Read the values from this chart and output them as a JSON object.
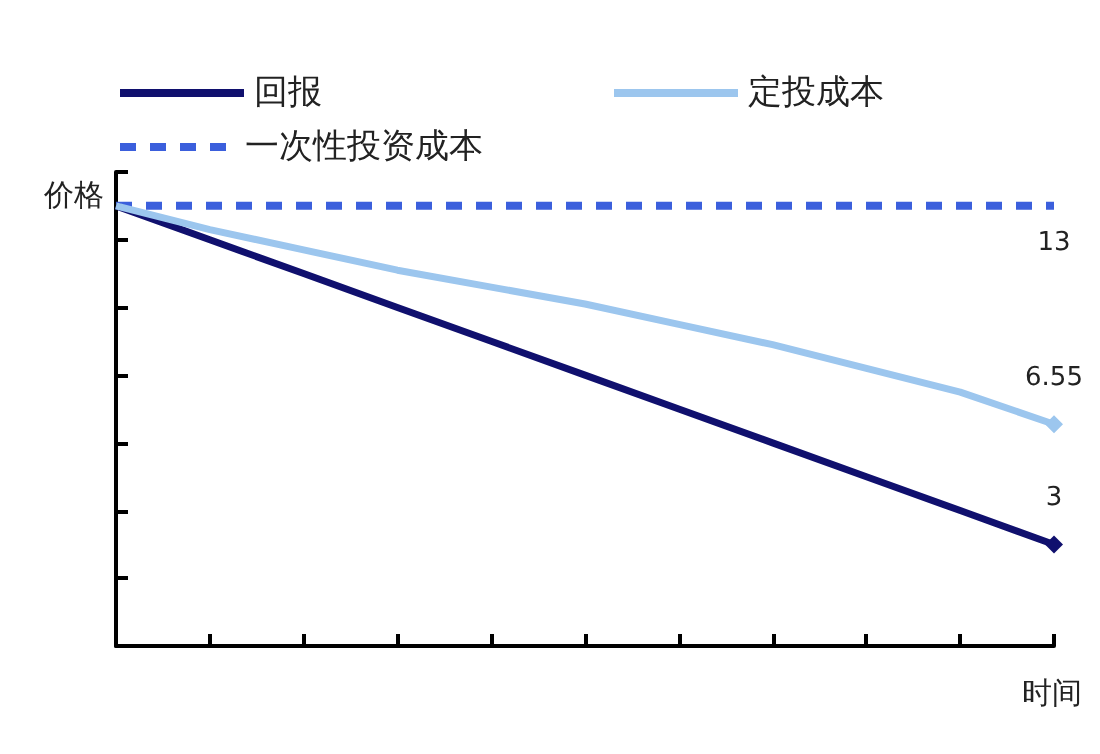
{
  "chart_data": {
    "type": "line",
    "xlabel": "时间",
    "ylabel": "价格",
    "categories": [
      null,
      null,
      null,
      null,
      null,
      null,
      null,
      null,
      null,
      null,
      null
    ],
    "series": [
      {
        "name": "回报",
        "color": "#10106e",
        "line_style": "solid",
        "values": [
          13,
          12,
          11,
          10,
          9,
          8,
          7,
          6,
          5,
          4,
          3
        ],
        "value_labels": [
          null,
          null,
          null,
          null,
          null,
          null,
          null,
          null,
          null,
          null,
          "3"
        ]
      },
      {
        "name": "定投成本",
        "color": "#9cc6ee",
        "line_style": "solid",
        "values": [
          13,
          12.3,
          11.7,
          11.1,
          10.6,
          10.1,
          9.5,
          8.9,
          8.2,
          7.5,
          6.55
        ],
        "value_labels": [
          null,
          null,
          null,
          null,
          null,
          null,
          null,
          null,
          null,
          null,
          "6.55"
        ]
      },
      {
        "name": "一次性投资成本",
        "color": "#3b5fdc",
        "line_style": "dashed",
        "values": [
          13,
          13,
          13,
          13,
          13,
          13,
          13,
          13,
          13,
          13,
          13
        ],
        "value_labels": [
          null,
          null,
          null,
          null,
          null,
          null,
          null,
          null,
          null,
          null,
          "13"
        ]
      }
    ],
    "ylim": [
      0,
      14
    ],
    "yticks": [
      {
        "value": 0,
        "label": null
      },
      {
        "value": 2,
        "label": null
      },
      {
        "value": 4,
        "label": null
      },
      {
        "value": 6,
        "label": null
      },
      {
        "value": 8,
        "label": null
      },
      {
        "value": 10,
        "label": null
      },
      {
        "value": 12,
        "label": null
      },
      {
        "value": 14,
        "label": null
      }
    ],
    "grid": false,
    "legend": "top left"
  }
}
